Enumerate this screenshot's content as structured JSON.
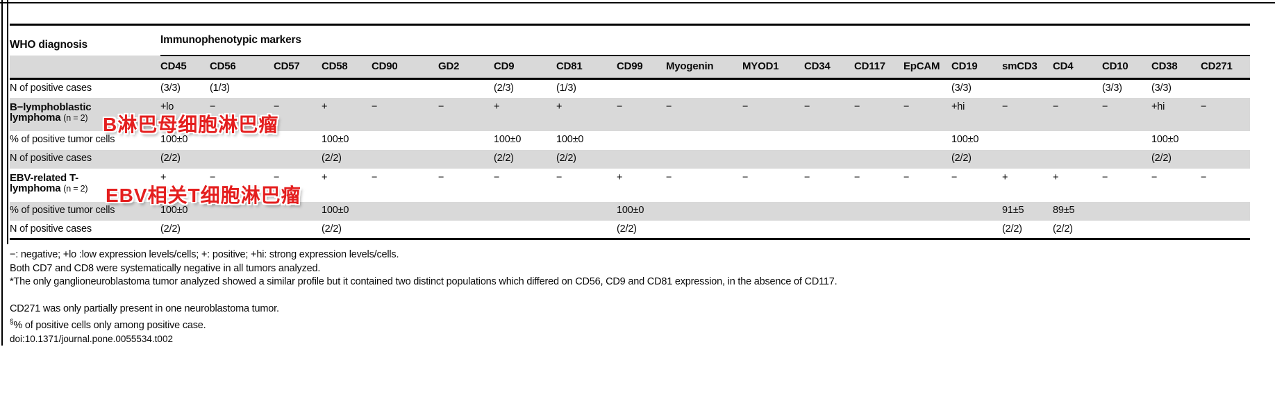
{
  "annotations": {
    "color": "#e41e1e",
    "b_lymphoblastic": "B淋巴母细胞淋巴瘤",
    "ebv_t": "EBV相关T细胞淋巴瘤"
  },
  "table": {
    "who_header": "WHO diagnosis",
    "group_header": "Immunophenotypic markers",
    "markers": [
      "CD45",
      "CD56",
      "CD57",
      "CD58",
      "CD90",
      "GD2",
      "CD9",
      "CD81",
      "CD99",
      "Myogenin",
      "MYOD1",
      "CD34",
      "CD117",
      "EpCAM",
      "CD19",
      "smCD3",
      "CD4",
      "CD10",
      "CD38",
      "CD271"
    ],
    "rows": [
      {
        "label": "N of positive cases",
        "shade": "white",
        "values": [
          "(3/3)",
          "(1/3)",
          "",
          "",
          "",
          "",
          "(2/3)",
          "(1/3)",
          "",
          "",
          "",
          "",
          "",
          "",
          "(3/3)",
          "",
          "",
          "(3/3)",
          "(3/3)",
          ""
        ]
      },
      {
        "label_line1": "B−lymphoblastic",
        "label_line2": "lymphoma",
        "label_line2_note": "(n = 2)",
        "shade": "gray",
        "values": [
          "+lo",
          "−",
          "−",
          "+",
          "−",
          "−",
          "+",
          "+",
          "−",
          "−",
          "−",
          "−",
          "−",
          "−",
          "+hi",
          "−",
          "−",
          "−",
          "+hi",
          "−"
        ]
      },
      {
        "label": "% of positive tumor cells",
        "shade": "white",
        "values": [
          "100±0",
          "",
          "",
          "100±0",
          "",
          "",
          "100±0",
          "100±0",
          "",
          "",
          "",
          "",
          "",
          "",
          "100±0",
          "",
          "",
          "",
          "100±0",
          ""
        ]
      },
      {
        "label": "N of positive cases",
        "shade": "gray",
        "values": [
          "(2/2)",
          "",
          "",
          "(2/2)",
          "",
          "",
          "(2/2)",
          "(2/2)",
          "",
          "",
          "",
          "",
          "",
          "",
          "(2/2)",
          "",
          "",
          "",
          "(2/2)",
          ""
        ]
      },
      {
        "label_line1": "EBV-related T-",
        "label_line2": "lymphoma",
        "label_line2_note": "(n = 2)",
        "shade": "white",
        "values": [
          "+",
          "−",
          "−",
          "+",
          "−",
          "−",
          "−",
          "−",
          "+",
          "−",
          "−",
          "−",
          "−",
          "−",
          "−",
          "+",
          "+",
          "−",
          "−",
          "−"
        ]
      },
      {
        "label": "% of positive tumor cells",
        "shade": "gray",
        "values": [
          "100±0",
          "",
          "",
          "100±0",
          "",
          "",
          "",
          "",
          "100±0",
          "",
          "",
          "",
          "",
          "",
          "",
          "91±5",
          "89±5",
          "",
          "",
          ""
        ]
      },
      {
        "label": "N of positive cases",
        "shade": "white",
        "values": [
          "(2/2)",
          "",
          "",
          "(2/2)",
          "",
          "",
          "",
          "",
          "(2/2)",
          "",
          "",
          "",
          "",
          "",
          "",
          "(2/2)",
          "(2/2)",
          "",
          "",
          ""
        ]
      }
    ]
  },
  "footnotes": {
    "line1": "−: negative; +lo :low expression levels/cells; +: positive; +hi: strong expression levels/cells.",
    "line2": "Both CD7 and CD8 were systematically negative in all tumors analyzed.",
    "line3": "*The only ganglioneuroblastoma tumor analyzed showed a similar profile but it contained two distinct populations which differed on CD56, CD9 and CD81 expression, in the absence of CD117.",
    "line4": "CD271 was only partially present in one neuroblastoma tumor.",
    "line5_marker": "§",
    "line5_text": "% of positive cells only among positive case.",
    "doi": "doi:10.1371/journal.pone.0055534.t002"
  }
}
